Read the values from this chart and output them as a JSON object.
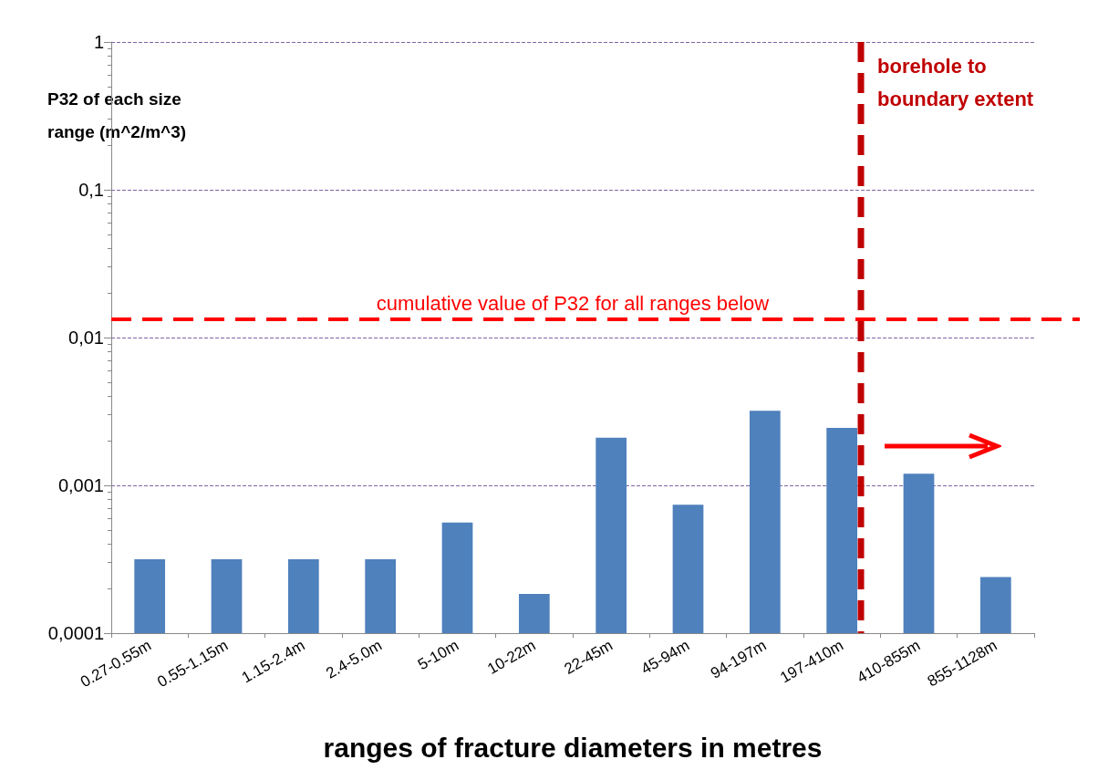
{
  "chart_data": {
    "type": "bar",
    "xlabel": "ranges of fracture diameters in metres",
    "ylabel": "P32 of each size range (m^2/m^3)",
    "categories": [
      "0.27-0.55m",
      "0.55-1.15m",
      "1.15-2.4m",
      "2.4-5.0m",
      "5-10m",
      "10-22m",
      "22-45m",
      "45-94m",
      "94-197m",
      "197-410m",
      "410-855m",
      "855-1128m"
    ],
    "values": [
      0.000316,
      0.000316,
      0.000316,
      0.000316,
      0.00056,
      0.000184,
      0.0021,
      0.00074,
      0.0032,
      0.00245,
      0.0012,
      0.00024
    ],
    "color": "#4f81bd",
    "log": "y",
    "ylim": [
      0.0001,
      1
    ],
    "yticks": [
      {
        "value": 0.0001,
        "label": "0,0001"
      },
      {
        "value": 0.001,
        "label": "0,001"
      },
      {
        "value": 0.01,
        "label": "0,01"
      },
      {
        "value": 0.1,
        "label": "0,1"
      },
      {
        "value": 1,
        "label": "1"
      }
    ],
    "grid": "y",
    "ref_lines": [
      {
        "axis": "y",
        "value": 0.0133,
        "label": "cumulative value of P32 for all ranges below",
        "color": "#ff0000",
        "line_style": "dashed"
      },
      {
        "axis": "x",
        "value": "197-410m",
        "label": "borehole to boundary extent",
        "color": "#c00000",
        "line_style": "dashed"
      }
    ]
  }
}
